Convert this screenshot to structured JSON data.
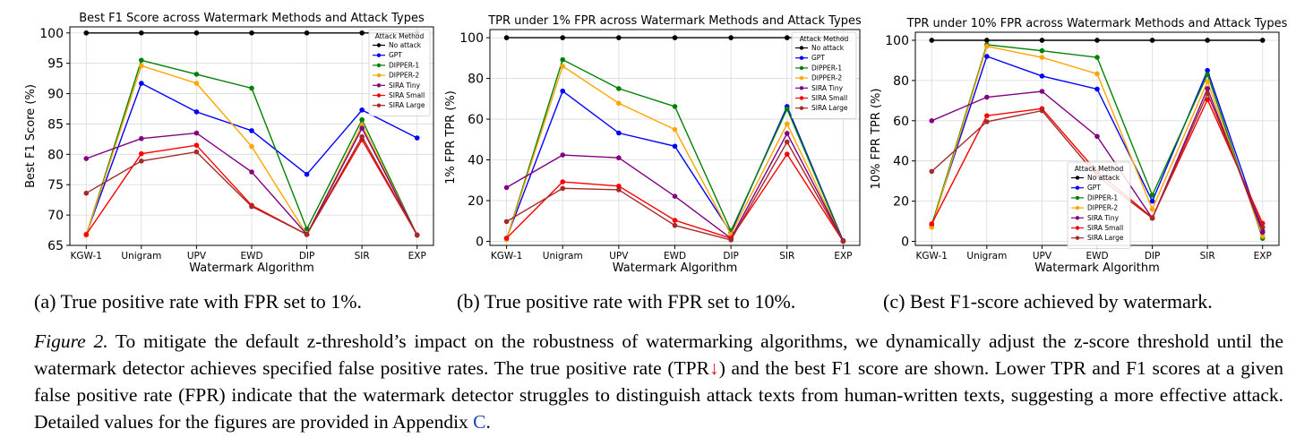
{
  "chart_data": [
    {
      "type": "line",
      "title": "Best F1 Score across Watermark Methods and Attack Types",
      "xlabel": "Watermark Algorithm",
      "ylabel": "Best F1 Score (%)",
      "categories": [
        "KGW-1",
        "Unigram",
        "UPV",
        "EWD",
        "DIP",
        "SIR",
        "EXP"
      ],
      "ylim": [
        65,
        101
      ],
      "yticks": [
        65,
        70,
        75,
        80,
        85,
        90,
        95,
        100
      ],
      "grid": true,
      "legend_title": "Attack Method",
      "legend_position": "top-right",
      "series": [
        {
          "name": "No attack",
          "color": "#000000",
          "values": [
            100,
            100,
            100,
            100,
            100,
            100,
            100
          ]
        },
        {
          "name": "GPT",
          "color": "#0000ff",
          "values": [
            66.8,
            91.7,
            87.0,
            83.9,
            76.7,
            87.3,
            82.7
          ]
        },
        {
          "name": "DIPPER-1",
          "color": "#008000",
          "values": [
            66.7,
            95.5,
            93.2,
            90.9,
            67.7,
            85.7,
            66.7
          ]
        },
        {
          "name": "DIPPER-2",
          "color": "#ffa500",
          "values": [
            66.7,
            94.6,
            91.7,
            81.3,
            66.8,
            84.8,
            66.7
          ]
        },
        {
          "name": "SIRA Tiny",
          "color": "#800080",
          "values": [
            79.3,
            82.6,
            83.5,
            77.1,
            66.8,
            84.3,
            66.7
          ]
        },
        {
          "name": "SIRA Small",
          "color": "#ff0000",
          "values": [
            66.8,
            80.1,
            81.5,
            71.6,
            66.8,
            82.4,
            66.7
          ]
        },
        {
          "name": "SIRA Large",
          "color": "#a52a2a",
          "values": [
            73.6,
            78.9,
            80.4,
            71.4,
            66.8,
            82.9,
            66.7
          ]
        }
      ]
    },
    {
      "type": "line",
      "title": "TPR under 1% FPR across Watermark Methods and Attack Types",
      "xlabel": "Watermark Algorithm",
      "ylabel": "1% FPR TPR (%)",
      "categories": [
        "KGW-1",
        "Unigram",
        "UPV",
        "EWD",
        "DIP",
        "SIR",
        "EXP"
      ],
      "ylim": [
        -2,
        104
      ],
      "yticks": [
        0,
        20,
        40,
        60,
        80,
        100
      ],
      "grid": true,
      "legend_title": "Attack Method",
      "legend_position": "top-right",
      "series": [
        {
          "name": "No attack",
          "color": "#000000",
          "values": [
            100,
            100,
            100,
            100,
            100,
            100,
            100
          ]
        },
        {
          "name": "GPT",
          "color": "#0000ff",
          "values": [
            1.5,
            73.8,
            53.2,
            46.7,
            4.2,
            66.2,
            0.3
          ]
        },
        {
          "name": "DIPPER-1",
          "color": "#008000",
          "values": [
            1.0,
            89.2,
            75.0,
            66.2,
            5.1,
            65.0,
            0.0
          ]
        },
        {
          "name": "DIPPER-2",
          "color": "#ffa500",
          "values": [
            1.0,
            86.0,
            67.8,
            54.9,
            3.3,
            57.7,
            0.0
          ]
        },
        {
          "name": "SIRA Tiny",
          "color": "#800080",
          "values": [
            26.4,
            42.4,
            41.0,
            22.1,
            1.5,
            53.0,
            0.3
          ]
        },
        {
          "name": "SIRA Small",
          "color": "#ff0000",
          "values": [
            1.5,
            29.2,
            27.1,
            10.3,
            1.5,
            42.8,
            0.0
          ]
        },
        {
          "name": "SIRA Large",
          "color": "#a52a2a",
          "values": [
            9.7,
            26.0,
            25.3,
            7.8,
            0.7,
            48.8,
            0.0
          ]
        }
      ]
    },
    {
      "type": "line",
      "title": "TPR under 10% FPR across Watermark Methods and Attack Types",
      "xlabel": "Watermark Algorithm",
      "ylabel": "10% FPR TPR (%)",
      "categories": [
        "KGW-1",
        "Unigram",
        "UPV",
        "EWD",
        "DIP",
        "SIR",
        "EXP"
      ],
      "ylim": [
        -2,
        104
      ],
      "yticks": [
        0,
        20,
        40,
        60,
        80,
        100
      ],
      "grid": true,
      "legend_title": "Attack Method",
      "legend_position": "lower-right",
      "series": [
        {
          "name": "No attack",
          "color": "#000000",
          "values": [
            100,
            100,
            100,
            100,
            100,
            100,
            100
          ]
        },
        {
          "name": "GPT",
          "color": "#0000ff",
          "values": [
            8.3,
            92.0,
            82.2,
            75.7,
            20.0,
            85.0,
            5.0
          ]
        },
        {
          "name": "DIPPER-1",
          "color": "#008000",
          "values": [
            8.0,
            97.8,
            94.8,
            91.5,
            23.0,
            83.0,
            1.5
          ]
        },
        {
          "name": "DIPPER-2",
          "color": "#ffa500",
          "values": [
            7.0,
            97.0,
            91.5,
            83.3,
            16.0,
            79.5,
            2.5
          ]
        },
        {
          "name": "SIRA Tiny",
          "color": "#800080",
          "values": [
            60.0,
            71.7,
            74.6,
            52.2,
            11.5,
            76.0,
            4.5
          ]
        },
        {
          "name": "SIRA Small",
          "color": "#ff0000",
          "values": [
            8.7,
            62.5,
            66.0,
            34.5,
            11.8,
            70.5,
            9.0
          ]
        },
        {
          "name": "SIRA Large",
          "color": "#a52a2a",
          "values": [
            34.8,
            59.5,
            65.0,
            32.5,
            11.5,
            73.5,
            7.0
          ]
        }
      ]
    }
  ],
  "subcaptions": {
    "a": "(a) True positive rate with FPR set to 1%.",
    "b": "(b) True positive rate with FPR set to 10%.",
    "c": "(c) Best F1-score achieved by watermark."
  },
  "caption": {
    "figure_label": "Figure 2.",
    "text_before_arrow": " To mitigate the default z-threshold’s impact on the robustness of watermarking algorithms, we dynamically adjust the z-score threshold until the watermark detector achieves specified false positive rates. The true positive rate (TPR",
    "arrow": "↓",
    "text_after_arrow": ") and the best F1 score are shown. Lower TPR and F1 scores at a given false positive rate (FPR) indicate that the watermark detector struggles to distinguish attack texts from human-written texts, suggesting a more effective attack. Detailed values for the figures are provided in Appendix ",
    "appendix_ref": "C",
    "end": "."
  }
}
